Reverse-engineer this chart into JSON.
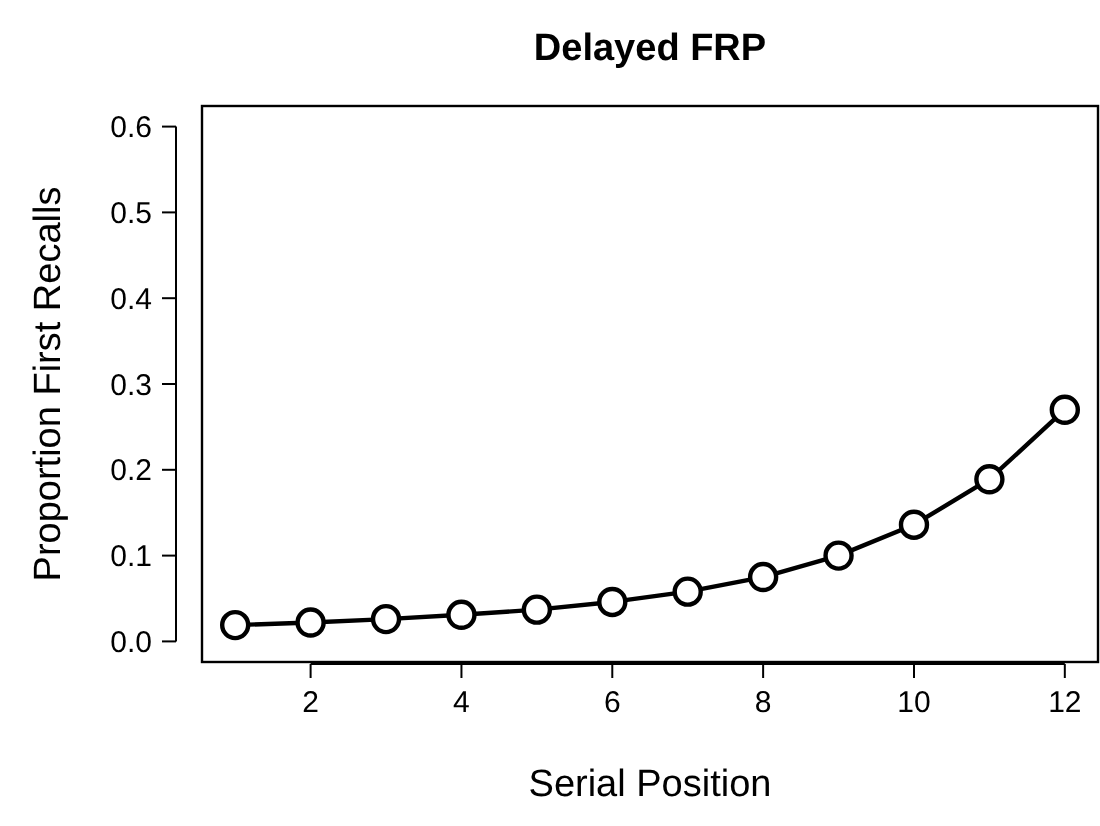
{
  "chart_data": {
    "type": "line",
    "title": "Delayed FRP",
    "xlabel": "Serial Position",
    "ylabel": "Proportion First Recalls",
    "x": [
      1,
      2,
      3,
      4,
      5,
      6,
      7,
      8,
      9,
      10,
      11,
      12
    ],
    "series": [
      {
        "color": "#000000",
        "values": [
          0.019,
          0.022,
          0.026,
          0.031,
          0.037,
          0.046,
          0.058,
          0.075,
          0.1,
          0.136,
          0.189,
          0.27
        ]
      }
    ],
    "xlim": [
      0.56,
      12.44
    ],
    "xticks": [
      2,
      4,
      6,
      8,
      10,
      12
    ],
    "ylim": [
      -0.024,
      0.624
    ],
    "yticks": [
      {
        "value": 0,
        "label": "0.0"
      },
      0.1,
      0.2,
      0.3,
      0.4,
      0.5,
      0.6
    ],
    "marker": "circle",
    "line_style": "solid",
    "grid": false
  }
}
